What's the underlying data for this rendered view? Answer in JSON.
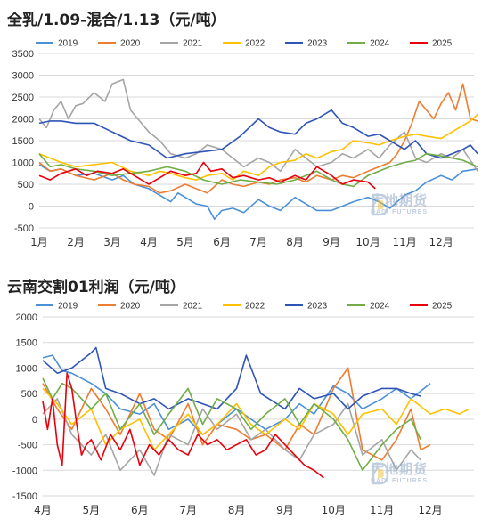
{
  "charts": [
    {
      "title": "全乳/1.09-混合/1.13（元/吨）"
    },
    {
      "title": "云南交割01利润（元/吨）"
    }
  ],
  "watermark": {
    "brand_cn": "大地期货",
    "brand_en": "DADI FUTURES"
  },
  "chart_data": [
    {
      "type": "line",
      "title": "全乳/1.09-混合/1.13（元/吨）",
      "x_ticks": [
        "1月",
        "2月",
        "3月",
        "4月",
        "5月",
        "6月",
        "7月",
        "8月",
        "9月",
        "10月",
        "11月",
        "12月"
      ],
      "ylim": [
        -500,
        3500
      ],
      "y_ticks": [
        -500,
        0,
        500,
        1000,
        1500,
        2000,
        2500,
        3000,
        3500
      ],
      "legend_position": "top",
      "grid": true,
      "series": [
        {
          "name": "2019",
          "color": "#4a90d9",
          "x": [
            0,
            0.3,
            0.6,
            1,
            1.5,
            2,
            2.3,
            2.6,
            3,
            3.3,
            3.6,
            3.8,
            4,
            4.3,
            4.6,
            4.8,
            5,
            5.3,
            5.6,
            6,
            6.3,
            6.6,
            7,
            7.3,
            7.6,
            8,
            8.3,
            8.6,
            9,
            9.3,
            9.6,
            10,
            10.3,
            10.6,
            11,
            11.3,
            11.6,
            12
          ],
          "y": [
            950,
            800,
            850,
            700,
            750,
            600,
            700,
            500,
            400,
            250,
            100,
            300,
            200,
            50,
            0,
            -300,
            -100,
            -50,
            -150,
            150,
            0,
            -100,
            200,
            50,
            -100,
            -100,
            0,
            100,
            200,
            100,
            -50,
            250,
            350,
            550,
            700,
            600,
            800,
            850
          ]
        },
        {
          "name": "2020",
          "color": "#ed7d31",
          "x": [
            0,
            0.3,
            0.6,
            1,
            1.5,
            2,
            2.3,
            2.6,
            3,
            3.3,
            3.6,
            4,
            4.3,
            4.6,
            5,
            5.3,
            5.6,
            6,
            6.3,
            6.6,
            7,
            7.3,
            7.6,
            8,
            8.3,
            8.6,
            9,
            9.3,
            9.6,
            9.8,
            10,
            10.2,
            10.4,
            10.6,
            10.8,
            11,
            11.2,
            11.4,
            11.6,
            11.8,
            12
          ],
          "y": [
            1000,
            800,
            850,
            700,
            600,
            750,
            600,
            500,
            450,
            300,
            350,
            500,
            400,
            300,
            600,
            500,
            450,
            550,
            500,
            600,
            650,
            550,
            700,
            600,
            700,
            650,
            800,
            900,
            1000,
            1200,
            1500,
            1900,
            2400,
            2200,
            2000,
            2350,
            2600,
            2200,
            2800,
            2000,
            1950
          ]
        },
        {
          "name": "2021",
          "color": "#a5a5a5",
          "x": [
            0,
            0.2,
            0.4,
            0.6,
            0.8,
            1,
            1.2,
            1.5,
            1.8,
            2,
            2.3,
            2.5,
            2.7,
            3,
            3.3,
            3.6,
            4,
            4.3,
            4.6,
            5,
            5.3,
            5.6,
            6,
            6.3,
            6.6,
            7,
            7.3,
            7.6,
            8,
            8.3,
            8.6,
            9,
            9.3,
            9.6,
            10,
            10.3,
            10.6,
            11,
            11.3,
            11.6,
            12
          ],
          "y": [
            2000,
            1800,
            2200,
            2400,
            2000,
            2300,
            2350,
            2600,
            2400,
            2800,
            2900,
            2200,
            2000,
            1700,
            1500,
            1200,
            1100,
            1200,
            1400,
            1300,
            1100,
            900,
            1100,
            1000,
            800,
            1300,
            1100,
            900,
            1000,
            1200,
            1100,
            1300,
            1100,
            1400,
            1700,
            1100,
            1000,
            1200,
            1100,
            1300,
            800
          ]
        },
        {
          "name": "2022",
          "color": "#ffc000",
          "x": [
            0,
            0.3,
            0.6,
            1,
            1.5,
            2,
            2.5,
            3,
            3.3,
            3.6,
            4,
            4.3,
            4.6,
            5,
            5.3,
            5.6,
            6,
            6.3,
            6.6,
            7,
            7.3,
            7.6,
            8,
            8.3,
            8.6,
            9,
            9.3,
            9.6,
            10,
            10.3,
            10.6,
            11,
            11.3,
            11.6,
            11.8,
            12
          ],
          "y": [
            1200,
            1100,
            1000,
            900,
            950,
            1000,
            800,
            700,
            800,
            750,
            650,
            600,
            700,
            750,
            600,
            800,
            700,
            900,
            1000,
            1050,
            1200,
            1100,
            1250,
            1300,
            1500,
            1450,
            1400,
            1500,
            1600,
            1650,
            1600,
            1550,
            1700,
            1850,
            1950,
            2100
          ]
        },
        {
          "name": "2023",
          "color": "#2e54b8",
          "x": [
            0,
            0.3,
            0.6,
            1,
            1.5,
            2,
            2.5,
            3,
            3.5,
            4,
            4.5,
            5,
            5.5,
            6,
            6.3,
            6.6,
            7,
            7.3,
            7.6,
            8,
            8.3,
            8.6,
            9,
            9.3,
            9.6,
            10,
            10.3,
            10.6,
            11,
            11.3,
            11.6,
            11.8,
            12
          ],
          "y": [
            1900,
            1950,
            1950,
            1900,
            1900,
            1700,
            1500,
            1400,
            1100,
            1200,
            1250,
            1300,
            1600,
            2000,
            1800,
            1700,
            1650,
            1900,
            2000,
            2200,
            1900,
            1800,
            1600,
            1650,
            1500,
            1300,
            1500,
            1200,
            1100,
            1200,
            1300,
            1400,
            1200
          ]
        },
        {
          "name": "2024",
          "color": "#70ad47",
          "x": [
            0,
            0.3,
            0.6,
            1,
            1.5,
            2,
            2.5,
            3,
            3.5,
            4,
            4.5,
            5,
            5.5,
            6,
            6.5,
            7,
            7.3,
            7.6,
            8,
            8.3,
            8.6,
            9,
            9.3,
            9.6,
            10,
            10.3,
            10.6,
            11,
            11.3,
            11.6,
            12
          ],
          "y": [
            1200,
            900,
            950,
            850,
            800,
            700,
            750,
            800,
            900,
            800,
            600,
            500,
            600,
            550,
            500,
            600,
            700,
            800,
            600,
            500,
            450,
            700,
            800,
            900,
            1000,
            1050,
            1200,
            1150,
            1100,
            1050,
            900
          ]
        },
        {
          "name": "2025",
          "color": "#e8000b",
          "x": [
            0,
            0.3,
            0.6,
            1,
            1.3,
            1.6,
            2,
            2.3,
            2.6,
            3,
            3.3,
            3.6,
            4,
            4.3,
            4.5,
            4.7,
            5,
            5.3,
            5.6,
            6,
            6.3,
            6.6,
            7,
            7.3,
            7.6,
            8,
            8.3,
            8.6,
            9,
            9.2
          ],
          "y": [
            700,
            600,
            750,
            850,
            700,
            800,
            750,
            850,
            700,
            500,
            650,
            800,
            700,
            750,
            1000,
            800,
            850,
            650,
            700,
            600,
            650,
            550,
            700,
            600,
            900,
            700,
            500,
            600,
            550,
            400
          ]
        }
      ]
    },
    {
      "type": "line",
      "title": "云南交割01利润（元/吨）",
      "x_ticks": [
        "4月",
        "5月",
        "6月",
        "7月",
        "8月",
        "9月",
        "10月",
        "11月",
        "12月"
      ],
      "ylim": [
        -1500,
        2000
      ],
      "y_ticks": [
        -1500,
        -1000,
        -500,
        0,
        500,
        1000,
        1500,
        2000
      ],
      "legend_position": "top",
      "grid": true,
      "series": [
        {
          "name": "2019",
          "color": "#4a90d9",
          "x": [
            0,
            0.2,
            0.4,
            0.6,
            0.8,
            1,
            1.3,
            1.6,
            2,
            2.3,
            2.6,
            3,
            3.3,
            3.6,
            4,
            4.3,
            4.6,
            5,
            5.3,
            5.6,
            6,
            6.3,
            6.6,
            7,
            7.3,
            7.6,
            8
          ],
          "y": [
            1200,
            1250,
            950,
            900,
            800,
            700,
            500,
            200,
            100,
            300,
            -200,
            0,
            -300,
            -100,
            200,
            0,
            -200,
            0,
            300,
            100,
            650,
            500,
            200,
            400,
            600,
            400,
            700
          ]
        },
        {
          "name": "2020",
          "color": "#ed7d31",
          "x": [
            0,
            0.3,
            0.6,
            1,
            1.3,
            1.6,
            2,
            2.3,
            2.6,
            3,
            3.3,
            3.6,
            4,
            4.3,
            4.6,
            5,
            5.3,
            5.6,
            6,
            6.3,
            6.6,
            7,
            7.3,
            7.6,
            7.8,
            8
          ],
          "y": [
            700,
            200,
            -200,
            600,
            200,
            -300,
            500,
            -200,
            -400,
            300,
            -500,
            -100,
            -200,
            -400,
            -300,
            -600,
            -100,
            -300,
            600,
            1000,
            -600,
            -800,
            -400,
            200,
            -600,
            -500
          ]
        },
        {
          "name": "2021",
          "color": "#a5a5a5",
          "x": [
            0,
            0.3,
            0.6,
            1,
            1.3,
            1.6,
            2,
            2.3,
            2.6,
            3,
            3.3,
            3.6,
            4,
            4.3,
            4.6,
            5,
            5.3,
            5.6,
            6,
            6.3,
            6.6,
            7,
            7.3,
            7.6,
            7.8
          ],
          "y": [
            100,
            400,
            -300,
            -700,
            -300,
            -1000,
            -600,
            -1100,
            -300,
            -500,
            200,
            -200,
            100,
            -400,
            -200,
            -600,
            -800,
            -300,
            -100,
            300,
            -700,
            -400,
            -1000,
            -600,
            -800
          ]
        },
        {
          "name": "2022",
          "color": "#ffc000",
          "x": [
            0,
            0.3,
            0.6,
            1,
            1.3,
            1.6,
            2,
            2.3,
            2.6,
            3,
            3.3,
            3.6,
            4,
            4.3,
            4.6,
            5,
            5.3,
            5.6,
            6,
            6.3,
            6.6,
            7,
            7.3,
            7.6,
            8,
            8.3,
            8.6,
            8.8
          ],
          "y": [
            600,
            300,
            -100,
            200,
            -500,
            -200,
            0,
            -600,
            -300,
            100,
            -300,
            -100,
            300,
            -100,
            -300,
            0,
            -200,
            300,
            100,
            -300,
            100,
            200,
            -100,
            400,
            100,
            200,
            100,
            200
          ]
        },
        {
          "name": "2023",
          "color": "#2e54b8",
          "x": [
            0,
            0.3,
            0.6,
            1,
            1.1,
            1.3,
            1.6,
            2,
            2.3,
            2.6,
            3,
            3.3,
            3.6,
            4,
            4.2,
            4.5,
            5,
            5.3,
            5.6,
            6,
            6.3,
            6.6,
            7,
            7.3,
            7.6,
            7.8
          ],
          "y": [
            1150,
            900,
            1000,
            1300,
            1400,
            600,
            500,
            300,
            400,
            200,
            400,
            300,
            200,
            600,
            1250,
            500,
            200,
            600,
            400,
            500,
            200,
            450,
            600,
            600,
            500,
            450
          ]
        },
        {
          "name": "2024",
          "color": "#70ad47",
          "x": [
            0,
            0.2,
            0.4,
            0.6,
            1,
            1.3,
            1.6,
            2,
            2.3,
            2.6,
            3,
            3.3,
            3.6,
            4,
            4.3,
            4.6,
            5,
            5.3,
            5.6,
            6,
            6.3,
            6.6,
            7,
            7.3,
            7.6,
            7.8
          ],
          "y": [
            800,
            400,
            700,
            600,
            200,
            500,
            -200,
            300,
            -300,
            100,
            600,
            -100,
            400,
            200,
            -200,
            100,
            400,
            -100,
            300,
            0,
            -400,
            -1000,
            -500,
            -200,
            0,
            -400
          ]
        },
        {
          "name": "2025",
          "color": "#e8000b",
          "x": [
            0,
            0.1,
            0.2,
            0.3,
            0.4,
            0.5,
            0.6,
            0.7,
            0.8,
            0.9,
            1,
            1.2,
            1.4,
            1.6,
            1.8,
            2,
            2.2,
            2.4,
            2.6,
            2.8,
            3,
            3.2,
            3.4,
            3.6,
            3.8,
            4,
            4.2,
            4.4,
            4.6,
            4.8,
            5,
            5.2,
            5.4,
            5.6,
            5.8
          ],
          "y": [
            350,
            -200,
            400,
            -500,
            -900,
            900,
            600,
            -100,
            -700,
            -500,
            -400,
            -800,
            -300,
            -600,
            -200,
            -900,
            -500,
            -700,
            -400,
            -600,
            -700,
            -300,
            -500,
            -400,
            -600,
            -500,
            -400,
            -700,
            -600,
            -300,
            -500,
            -700,
            -900,
            -1000,
            -1150
          ]
        }
      ]
    }
  ]
}
